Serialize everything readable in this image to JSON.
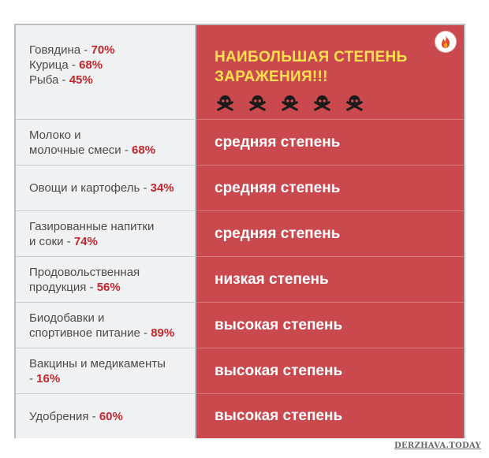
{
  "header": {
    "foods": [
      {
        "name": "Говядина - ",
        "pct": "70%"
      },
      {
        "name": "Курица - ",
        "pct": "68%"
      },
      {
        "name": "Рыба - ",
        "pct": "45%"
      }
    ],
    "danger_line1": "НАИБОЛЬШАЯ СТЕПЕНЬ",
    "danger_line2": "ЗАРАЖЕНИЯ!!!",
    "skull_icon": "skull-crossbones-icon",
    "badge_icon": "fire-icon"
  },
  "rows": [
    {
      "line1": "Молоко и",
      "line2": "молочные смеси - ",
      "pct": "68%",
      "level": "средняя степень"
    },
    {
      "line1": "",
      "line2": "Овощи и картофель - ",
      "pct": "34%",
      "level": "средняя степень"
    },
    {
      "line1": "Газированные напитки",
      "line2": "и соки - ",
      "pct": "74%",
      "level": "средняя степень"
    },
    {
      "line1": "Продовольственная",
      "line2": "продукция - ",
      "pct": "56%",
      "level": "низкая степень"
    },
    {
      "line1": "Биодобавки и",
      "line2": "спортивное питание - ",
      "pct": "89%",
      "level": "высокая степень"
    },
    {
      "line1": "Вакцины и медикаменты",
      "line2": "- ",
      "pct": "16%",
      "level": "высокая степень"
    },
    {
      "line1": "",
      "line2": "Удобрения - ",
      "pct": "60%",
      "level": "высокая степень"
    }
  ],
  "watermark": "DERZHAVA.TODAY",
  "colors": {
    "accent_red": "#c9494f",
    "pct_red": "#c1272d",
    "title_yellow": "#ffe14d",
    "cell_gray": "#eff1f3"
  }
}
